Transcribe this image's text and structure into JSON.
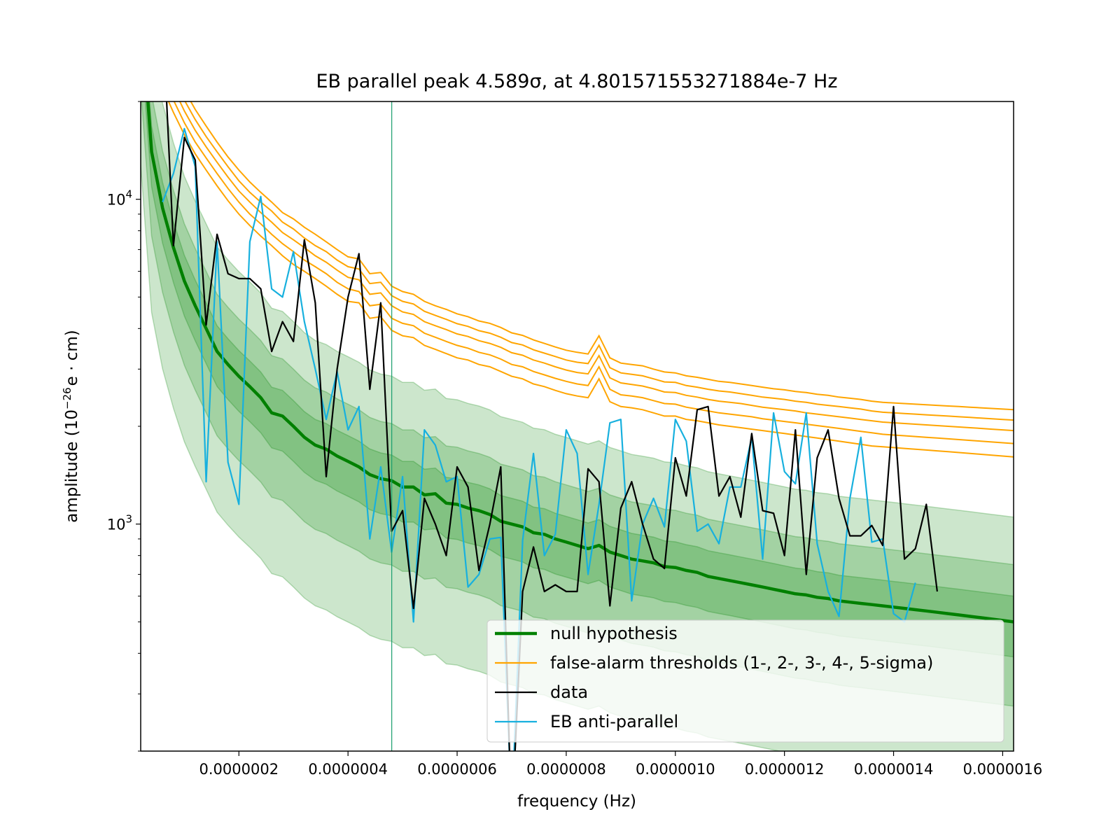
{
  "chart_data": {
    "type": "line",
    "title": "EB parallel peak 4.589σ, at 4.801571553271884e-7 Hz",
    "xlabel": "frequency (Hz)",
    "ylabel_base": "amplitude (10",
    "ylabel_exp": "−26",
    "ylabel_unit": "e · cm)",
    "xscale": "linear",
    "yscale": "log",
    "xlim": [
      2e-08,
      1.62e-06
    ],
    "ylim": [
      200,
      20000
    ],
    "x_ticks": [
      2e-07,
      4e-07,
      6e-07,
      8e-07,
      1e-06,
      1.2e-06,
      1.4e-06,
      1.6e-06
    ],
    "x_tick_labels": [
      "0.0000002",
      "0.0000004",
      "0.0000006",
      "0.0000008",
      "0.0000010",
      "0.0000012",
      "0.0000014",
      "0.0000016"
    ],
    "y_ticks": [
      {
        "value": 10000,
        "base": "10",
        "exp": "4"
      },
      {
        "value": 1000,
        "base": "10",
        "exp": "3"
      }
    ],
    "peak_marker_x": 4.801571553271884e-07,
    "legend_position": "lower right",
    "legend": [
      {
        "label": "null hypothesis",
        "color": "#008000"
      },
      {
        "label": "false-alarm thresholds (1-, 2-, 3-, 4-, 5-sigma)",
        "color": "#ffa500"
      },
      {
        "label": "data",
        "color": "#000000"
      },
      {
        "label": "EB anti-parallel",
        "color": "#17b0de"
      }
    ],
    "colors": {
      "null": "#008000",
      "threshold": "#ffa500",
      "data": "#000000",
      "antiparallel": "#17b0de",
      "band": "#008000",
      "marker": "#1a9e6e"
    },
    "freq_step": 2e-08,
    "series": [
      {
        "name": "null hypothesis",
        "values": [
          40000,
          14000,
          9400,
          7100,
          5600,
          4700,
          4000,
          3400,
          3100,
          2850,
          2650,
          2450,
          2200,
          2150,
          2000,
          1850,
          1750,
          1700,
          1620,
          1560,
          1500,
          1420,
          1380,
          1360,
          1300,
          1300,
          1230,
          1240,
          1160,
          1150,
          1120,
          1100,
          1070,
          1020,
          1000,
          980,
          940,
          930,
          900,
          880,
          860,
          840,
          860,
          820,
          800,
          780,
          770,
          760,
          740,
          735,
          720,
          710,
          690,
          680,
          670,
          660,
          650,
          640,
          630,
          620,
          610,
          605,
          595,
          590,
          580,
          575,
          570,
          565,
          560,
          555,
          550,
          545,
          540,
          535,
          530,
          525,
          520,
          515,
          510,
          505,
          500
        ]
      },
      {
        "name": "data",
        "values": [
          null,
          null,
          37000,
          7200,
          15500,
          13200,
          4100,
          7800,
          5900,
          5700,
          5700,
          5300,
          3400,
          4200,
          3650,
          7500,
          4800,
          1400,
          3000,
          5000,
          6800,
          2600,
          4800,
          950,
          1100,
          550,
          1200,
          1000,
          800,
          1500,
          1300,
          720,
          1000,
          1500,
          120,
          620,
          850,
          620,
          650,
          620,
          620,
          1480,
          1350,
          560,
          1120,
          1350,
          1000,
          780,
          730,
          1600,
          1220,
          2250,
          2300,
          1220,
          1400,
          1050,
          1900,
          1100,
          1080,
          800,
          1950,
          700,
          1600,
          1950,
          1200,
          920,
          920,
          990,
          860,
          2300,
          780,
          840,
          1150,
          620
        ]
      },
      {
        "name": "EB anti-parallel",
        "values": [
          null,
          null,
          9800,
          12000,
          16500,
          12600,
          1350,
          7400,
          1550,
          1150,
          7400,
          10200,
          5300,
          5000,
          6900,
          4200,
          3000,
          2100,
          2950,
          1950,
          2300,
          900,
          1500,
          820,
          1400,
          500,
          1950,
          1750,
          1350,
          1400,
          640,
          700,
          900,
          910,
          130,
          890,
          1650,
          800,
          930,
          1950,
          1650,
          700,
          1150,
          2050,
          2100,
          580,
          1000,
          1200,
          980,
          2100,
          1800,
          950,
          1000,
          870,
          1300,
          1300,
          1850,
          780,
          2200,
          1450,
          1330,
          2200,
          870,
          620,
          520,
          1200,
          1850,
          880,
          900,
          530,
          500,
          660
        ]
      }
    ],
    "thresholds": [
      {
        "name": "1-sigma",
        "values": [
          32000,
          26500,
          22000,
          18500,
          15800,
          13800,
          12300,
          11000,
          9900,
          9000,
          8300,
          7700,
          7200,
          6700,
          6300,
          6000,
          5700,
          5400,
          5100,
          4850,
          4800,
          4300,
          4350,
          3950,
          3800,
          3750,
          3550,
          3450,
          3350,
          3250,
          3200,
          3100,
          3050,
          2950,
          2850,
          2800,
          2700,
          2650,
          2580,
          2520,
          2480,
          2450,
          2800,
          2380,
          2300,
          2280,
          2250,
          2200,
          2150,
          2150,
          2100,
          2080,
          2050,
          2020,
          2000,
          1980,
          1960,
          1940,
          1920,
          1900,
          1880,
          1860,
          1840,
          1820,
          1800,
          1780,
          1760,
          1740,
          1730,
          1720,
          1710,
          1700,
          1690,
          1680,
          1670,
          1660,
          1650,
          1640,
          1630,
          1620,
          1610
        ]
      },
      {
        "name": "2-sigma",
        "values": [
          35000,
          29000,
          24000,
          20200,
          17200,
          15000,
          13400,
          12000,
          10800,
          9800,
          9000,
          8400,
          7800,
          7300,
          6900,
          6500,
          6200,
          5900,
          5550,
          5300,
          5200,
          4700,
          4750,
          4300,
          4150,
          4080,
          3870,
          3760,
          3650,
          3550,
          3480,
          3380,
          3320,
          3220,
          3100,
          3050,
          2950,
          2880,
          2810,
          2750,
          2700,
          2670,
          3050,
          2600,
          2500,
          2480,
          2450,
          2400,
          2350,
          2340,
          2290,
          2260,
          2230,
          2200,
          2180,
          2160,
          2140,
          2110,
          2090,
          2070,
          2050,
          2030,
          2010,
          1990,
          1970,
          1950,
          1930,
          1910,
          1890,
          1880,
          1870,
          1860,
          1850,
          1840,
          1830,
          1820,
          1810,
          1800,
          1790,
          1780,
          1770
        ]
      },
      {
        "name": "3-sigma",
        "values": [
          38000,
          31500,
          26000,
          22000,
          18700,
          16300,
          14500,
          13000,
          11700,
          10600,
          9800,
          9100,
          8500,
          7900,
          7500,
          7100,
          6700,
          6400,
          6050,
          5750,
          5650,
          5100,
          5150,
          4700,
          4500,
          4420,
          4200,
          4080,
          3970,
          3850,
          3780,
          3670,
          3600,
          3500,
          3370,
          3310,
          3200,
          3130,
          3050,
          2980,
          2930,
          2900,
          3300,
          2820,
          2720,
          2690,
          2660,
          2610,
          2550,
          2540,
          2490,
          2460,
          2420,
          2390,
          2370,
          2350,
          2320,
          2290,
          2270,
          2250,
          2230,
          2200,
          2180,
          2160,
          2140,
          2120,
          2100,
          2080,
          2060,
          2050,
          2040,
          2030,
          2020,
          2010,
          2000,
          1990,
          1980,
          1970,
          1960,
          1950,
          1940
        ]
      },
      {
        "name": "4-sigma",
        "values": [
          41000,
          34000,
          28000,
          23700,
          20200,
          17600,
          15600,
          14000,
          12600,
          11400,
          10500,
          9800,
          9200,
          8500,
          8100,
          7600,
          7200,
          6900,
          6500,
          6200,
          6100,
          5500,
          5550,
          5050,
          4850,
          4760,
          4520,
          4390,
          4270,
          4140,
          4060,
          3940,
          3870,
          3760,
          3620,
          3560,
          3440,
          3360,
          3280,
          3200,
          3150,
          3120,
          3550,
          3030,
          2920,
          2890,
          2860,
          2800,
          2740,
          2730,
          2670,
          2640,
          2600,
          2570,
          2550,
          2520,
          2490,
          2460,
          2440,
          2420,
          2390,
          2370,
          2340,
          2320,
          2300,
          2280,
          2260,
          2230,
          2210,
          2200,
          2190,
          2180,
          2170,
          2160,
          2150,
          2140,
          2130,
          2120,
          2110,
          2100,
          2090
        ]
      },
      {
        "name": "5-sigma",
        "values": [
          44000,
          36500,
          30000,
          25500,
          21700,
          18900,
          16800,
          15000,
          13500,
          12300,
          11300,
          10500,
          9800,
          9100,
          8700,
          8200,
          7800,
          7400,
          7000,
          6650,
          6550,
          5900,
          5950,
          5400,
          5200,
          5100,
          4850,
          4700,
          4580,
          4440,
          4350,
          4220,
          4150,
          4030,
          3880,
          3810,
          3690,
          3600,
          3510,
          3430,
          3380,
          3340,
          3800,
          3250,
          3130,
          3100,
          3070,
          3000,
          2940,
          2920,
          2860,
          2830,
          2790,
          2750,
          2730,
          2700,
          2670,
          2640,
          2610,
          2590,
          2560,
          2540,
          2510,
          2490,
          2460,
          2440,
          2420,
          2390,
          2370,
          2360,
          2350,
          2340,
          2330,
          2320,
          2310,
          2300,
          2290,
          2280,
          2270,
          2260,
          2250
        ]
      }
    ],
    "bands": [
      {
        "name": "outer",
        "lower_factor": 0.32,
        "upper_factor": 2.1,
        "opacity": 0.2
      },
      {
        "name": "middle",
        "lower_factor": 0.55,
        "upper_factor": 1.5,
        "opacity": 0.2
      },
      {
        "name": "inner",
        "lower_factor": 0.78,
        "upper_factor": 1.2,
        "opacity": 0.2
      }
    ]
  }
}
